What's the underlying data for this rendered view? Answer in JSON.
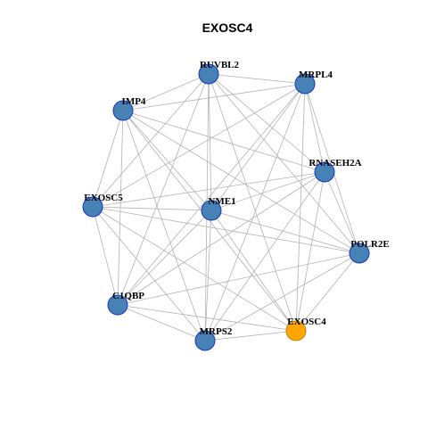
{
  "title": "EXOSC4",
  "nodes": [
    {
      "label": "RUVBL2"
    },
    {
      "label": "MRPL4"
    },
    {
      "label": "IMP4"
    },
    {
      "label": "RNASEH2A"
    },
    {
      "label": "EXOSC5"
    },
    {
      "label": "NME1"
    },
    {
      "label": "POLR2E"
    },
    {
      "label": "C1QBP"
    },
    {
      "label": "EXOSC4"
    },
    {
      "label": "MRPS2"
    }
  ]
}
